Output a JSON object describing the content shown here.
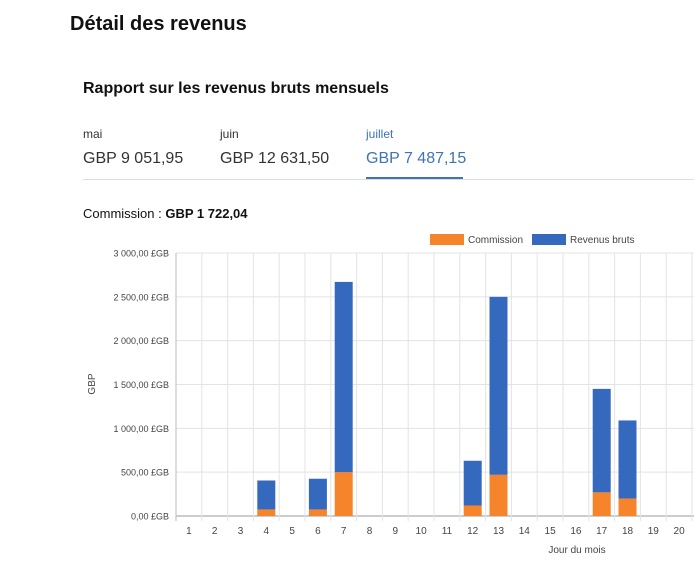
{
  "header": {
    "title": "Détail des revenus"
  },
  "report": {
    "title": "Rapport sur les revenus bruts mensuels",
    "months": [
      {
        "name": "mai",
        "value": "GBP 9 051,95",
        "active": false
      },
      {
        "name": "juin",
        "value": "GBP 12 631,50",
        "active": false
      },
      {
        "name": "juillet",
        "value": "GBP 7 487,15",
        "active": true
      }
    ],
    "commission_label": "Commission : ",
    "commission_value": "GBP 1 722,04"
  },
  "colors": {
    "commission": "#f5842a",
    "gross": "#3569be",
    "active_tab": "#3e73b5"
  },
  "chart_data": {
    "type": "bar",
    "stacked": true,
    "xlabel": "Jour du mois",
    "ylabel": "GBP",
    "ylim": [
      0,
      3000
    ],
    "yticks": [
      0,
      500,
      1000,
      1500,
      2000,
      2500,
      3000
    ],
    "ytick_labels": [
      "0,00 £GB",
      "500,00 £GB",
      "1 000,00 £GB",
      "1 500,00 £GB",
      "2 000,00 £GB",
      "2 500,00 £GB",
      "3 000,00 £GB"
    ],
    "categories": [
      "1",
      "2",
      "3",
      "4",
      "5",
      "6",
      "7",
      "8",
      "9",
      "10",
      "11",
      "12",
      "13",
      "14",
      "15",
      "16",
      "17",
      "18",
      "19",
      "20"
    ],
    "legend": "top-right",
    "grid": true,
    "series": [
      {
        "name": "Commission",
        "color": "#f5842a",
        "values": [
          0,
          0,
          0,
          75,
          0,
          75,
          500,
          0,
          0,
          0,
          0,
          120,
          470,
          0,
          0,
          0,
          270,
          200,
          0,
          0
        ]
      },
      {
        "name": "Revenus bruts",
        "color": "#3569be",
        "values": [
          0,
          0,
          0,
          330,
          0,
          350,
          2170,
          0,
          0,
          0,
          0,
          510,
          2030,
          0,
          0,
          0,
          1180,
          890,
          0,
          0
        ]
      }
    ]
  }
}
